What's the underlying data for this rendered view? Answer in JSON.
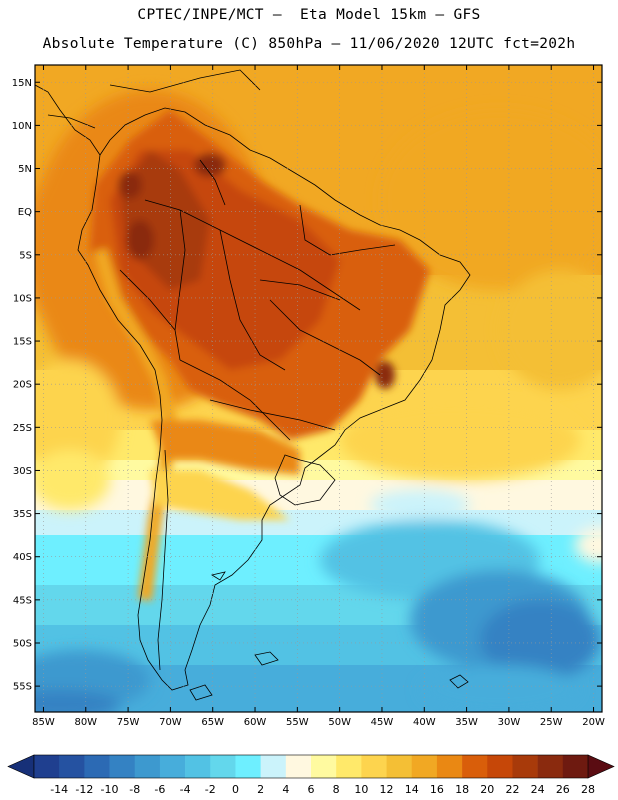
{
  "header": {
    "line1": "CPTEC/INPE/MCT –  Eta Model 15km – GFS",
    "line2": "Absolute Temperature (C) 850hPa – 11/06/2020 12UTC fct=202h"
  },
  "map": {
    "lon_range": [
      -86,
      -19
    ],
    "lat_range": [
      -58,
      17
    ],
    "lat_ticks": [
      "15N",
      "10N",
      "5N",
      "EQ",
      "5S",
      "10S",
      "15S",
      "20S",
      "25S",
      "30S",
      "35S",
      "40S",
      "45S",
      "50S",
      "55S"
    ],
    "lon_ticks": [
      "85W",
      "80W",
      "75W",
      "70W",
      "65W",
      "60W",
      "55W",
      "50W",
      "45W",
      "40W",
      "35W",
      "30W",
      "25W",
      "20W"
    ]
  },
  "colorbar": {
    "labels": [
      "-14",
      "-12",
      "-10",
      "-8",
      "-6",
      "-4",
      "-2",
      "0",
      "2",
      "4",
      "6",
      "8",
      "10",
      "12",
      "14",
      "16",
      "18",
      "20",
      "22",
      "24",
      "26",
      "28"
    ],
    "colors": [
      "#1f3f8f",
      "#2552a1",
      "#2c6ab4",
      "#3482c3",
      "#3d99cf",
      "#47addb",
      "#52c2e4",
      "#63d7ec",
      "#6eefff",
      "#cbf3fb",
      "#fff8e0",
      "#fffaa0",
      "#ffe96a",
      "#fdd44e",
      "#f4bf35",
      "#f1a823",
      "#ea8813",
      "#d95e0a",
      "#c64708",
      "#a83a0a",
      "#8a2a0e",
      "#6e1a10"
    ],
    "low_color": "#173078",
    "high_color": "#5a0c12"
  }
}
